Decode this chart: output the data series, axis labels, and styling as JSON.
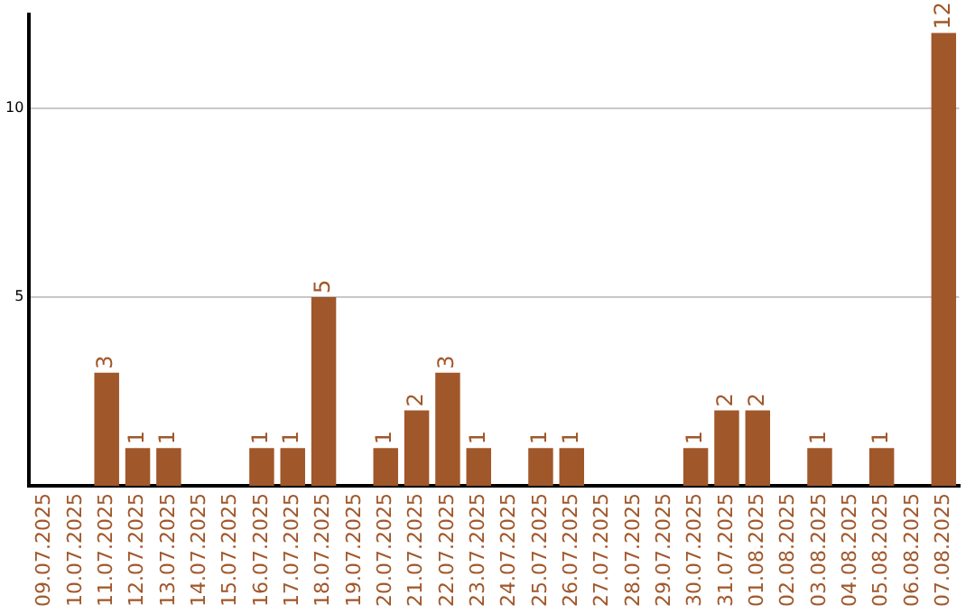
{
  "chart_data": {
    "type": "bar",
    "categories": [
      "09.07.2025",
      "10.07.2025",
      "11.07.2025",
      "12.07.2025",
      "13.07.2025",
      "14.07.2025",
      "15.07.2025",
      "16.07.2025",
      "17.07.2025",
      "18.07.2025",
      "19.07.2025",
      "20.07.2025",
      "21.07.2025",
      "22.07.2025",
      "23.07.2025",
      "24.07.2025",
      "25.07.2025",
      "26.07.2025",
      "27.07.2025",
      "28.07.2025",
      "29.07.2025",
      "30.07.2025",
      "31.07.2025",
      "01.08.2025",
      "02.08.2025",
      "03.08.2025",
      "04.08.2025",
      "05.08.2025",
      "06.08.2025",
      "07.08.2025"
    ],
    "values": [
      0,
      0,
      3,
      1,
      1,
      0,
      0,
      1,
      1,
      5,
      0,
      1,
      2,
      3,
      1,
      0,
      1,
      1,
      0,
      0,
      0,
      1,
      2,
      2,
      0,
      1,
      0,
      1,
      0,
      12
    ],
    "value_labels": [
      null,
      null,
      "3",
      "1",
      "1",
      null,
      null,
      "1",
      "1",
      "5",
      null,
      "1",
      "2",
      "3",
      "1",
      null,
      "1",
      "1",
      null,
      null,
      null,
      "1",
      "2",
      "2",
      null,
      "1",
      null,
      "1",
      null,
      "12"
    ],
    "color": "#a0572a",
    "ylim": [
      0,
      12.5
    ],
    "yticks": [
      5,
      10
    ],
    "grid": "y"
  }
}
